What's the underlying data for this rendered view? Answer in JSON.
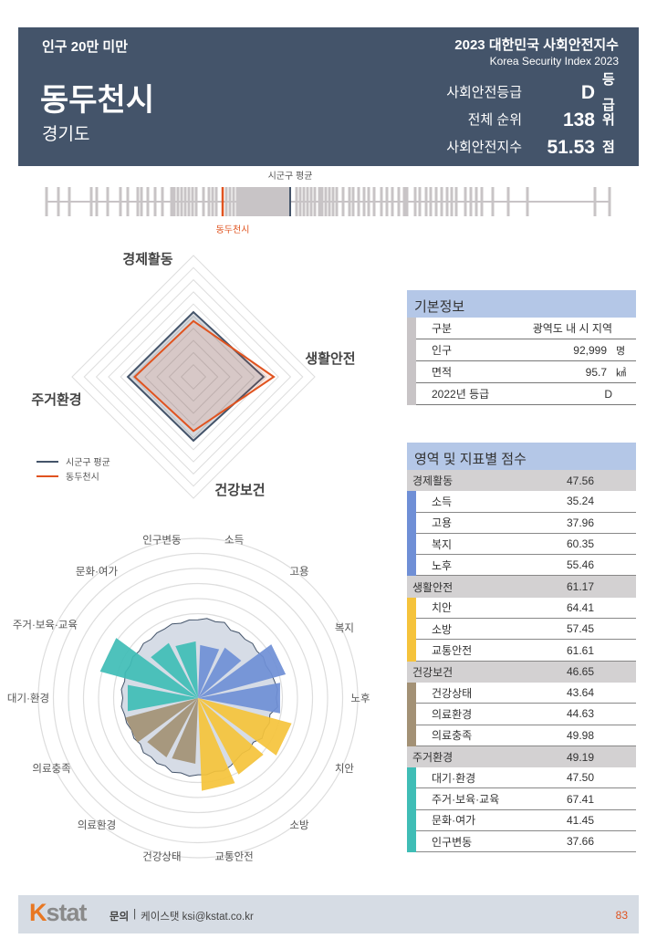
{
  "header": {
    "category": "인구 20만 미만",
    "city": "동두천시",
    "province": "경기도",
    "title": "2023 대한민국 사회안전지수",
    "subtitle": "Korea Security Index 2023",
    "stats": [
      {
        "label": "사회안전등급",
        "value": "D",
        "unit": "등급"
      },
      {
        "label": "전체 순위",
        "value": "138",
        "unit": "위"
      },
      {
        "label": "사회안전지수",
        "value": "51.53",
        "unit": "점"
      }
    ]
  },
  "strip": {
    "avg_label": "시군구 평균",
    "city_label": "동두천시",
    "avg_color": "#44546a",
    "city_color": "#e0531f"
  },
  "radar": {
    "axes": [
      "경제활동",
      "생활안전",
      "건강보건",
      "주거환경"
    ],
    "series": [
      {
        "name": "시군구 평균",
        "values": [
          52.5,
          55.5,
          52,
          53
        ],
        "color": "#44546a"
      },
      {
        "name": "동두천시",
        "values": [
          47.56,
          61.17,
          46.65,
          49.19
        ],
        "color": "#e0531f"
      }
    ]
  },
  "polar": {
    "labels": [
      "소득",
      "고용",
      "복지",
      "노후",
      "치안",
      "소방",
      "교통안전",
      "건강상태",
      "의료환경",
      "의료충족",
      "대기·환경",
      "주거·보육·교육",
      "문화·여가",
      "인구변동"
    ],
    "values": [
      35.24,
      37.96,
      60.35,
      55.46,
      64.41,
      57.45,
      61.61,
      43.64,
      44.63,
      49.98,
      47.5,
      67.41,
      41.45,
      37.66
    ],
    "average": [
      52,
      50,
      50,
      52,
      49,
      47,
      50,
      51,
      50,
      49,
      50,
      50,
      50,
      51
    ],
    "group_colors": [
      "#6f8fd6",
      "#6f8fd6",
      "#6f8fd6",
      "#6f8fd6",
      "#f5c33b",
      "#f5c33b",
      "#f5c33b",
      "#a39175",
      "#a39175",
      "#a39175",
      "#3fbdb6",
      "#3fbdb6",
      "#3fbdb6",
      "#3fbdb6"
    ]
  },
  "basic": {
    "title": "기본정보",
    "rows": [
      {
        "label": "구분",
        "value": "광역도 내 시 지역",
        "unit": ""
      },
      {
        "label": "인구",
        "value": "92,999",
        "unit": "명"
      },
      {
        "label": "면적",
        "value": "95.7",
        "unit": "㎢"
      },
      {
        "label": "2022년 등급",
        "value": "D",
        "unit": ""
      }
    ]
  },
  "scores": {
    "title": "영역 및 지표별 점수",
    "groups": [
      {
        "name": "경제활동",
        "score": "47.56",
        "color": "#6f8fd6",
        "items": [
          {
            "name": "소득",
            "score": "35.24"
          },
          {
            "name": "고용",
            "score": "37.96"
          },
          {
            "name": "복지",
            "score": "60.35"
          },
          {
            "name": "노후",
            "score": "55.46"
          }
        ]
      },
      {
        "name": "생활안전",
        "score": "61.17",
        "color": "#f5c33b",
        "items": [
          {
            "name": "치안",
            "score": "64.41"
          },
          {
            "name": "소방",
            "score": "57.45"
          },
          {
            "name": "교통안전",
            "score": "61.61"
          }
        ]
      },
      {
        "name": "건강보건",
        "score": "46.65",
        "color": "#a39175",
        "items": [
          {
            "name": "건강상태",
            "score": "43.64"
          },
          {
            "name": "의료환경",
            "score": "44.63"
          },
          {
            "name": "의료충족",
            "score": "49.98"
          }
        ]
      },
      {
        "name": "주거환경",
        "score": "49.19",
        "color": "#3fbdb6",
        "items": [
          {
            "name": "대기·환경",
            "score": "47.50"
          },
          {
            "name": "주거·보육·교육",
            "score": "67.41"
          },
          {
            "name": "문화·여가",
            "score": "41.45"
          },
          {
            "name": "인구변동",
            "score": "37.66"
          }
        ]
      }
    ]
  },
  "footer": {
    "logo": "Kstat",
    "contact_label": "문의",
    "contact": "케이스탯 ksi@kstat.co.kr",
    "page": "83"
  }
}
